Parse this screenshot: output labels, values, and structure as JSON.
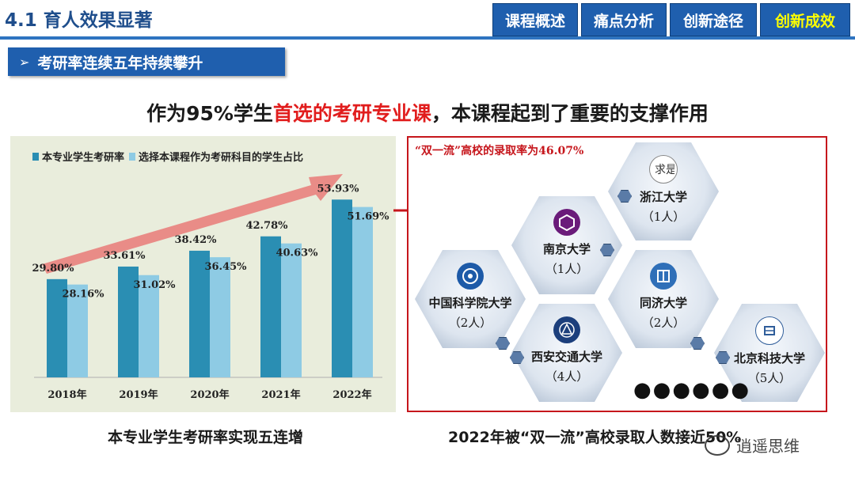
{
  "header": {
    "title": "4.1 育人效果显著",
    "nav": [
      "课程概述",
      "痛点分析",
      "创新途径",
      "创新成效"
    ],
    "active_nav": "创新成效"
  },
  "subtitle": "考研率连续五年持续攀升",
  "headline": {
    "part1": "作为95%学生",
    "highlight": "首选的考研专业课",
    "part2": "，本课程起到了重要的支撑作用"
  },
  "left_caption": "本专业学生考研率实现五连增",
  "right_caption": "2022年被“双一流”高校录取人数接近50%",
  "rate_label": "“双一流”高校的录取率为46.07%",
  "chart_data": {
    "type": "bar",
    "categories": [
      "2018年",
      "2019年",
      "2020年",
      "2021年",
      "2022年"
    ],
    "series": [
      {
        "name": "本专业学生考研率",
        "values": [
          29.8,
          33.61,
          38.42,
          42.78,
          53.93
        ],
        "labels": [
          "29.80%",
          "33.61%",
          "38.42%",
          "42.78%",
          "53.93%"
        ],
        "color": "#2a8eb3"
      },
      {
        "name": "选择本课程作为考研科目的学生占比",
        "values": [
          28.16,
          31.02,
          36.45,
          40.63,
          51.69
        ],
        "labels": [
          "28.16%",
          "31.02%",
          "36.45%",
          "40.63%",
          "51.69%"
        ],
        "color": "#8ecbe4"
      }
    ],
    "ylim": [
      0,
      60
    ],
    "annotation": "upward trend arrow"
  },
  "universities": [
    {
      "name": "浙江大学",
      "count": "（1人）"
    },
    {
      "name": "南京大学",
      "count": "（1人）"
    },
    {
      "name": "中国科学院大学",
      "count": "（2人）"
    },
    {
      "name": "同济大学",
      "count": "（2人）"
    },
    {
      "name": "西安交通大学",
      "count": "（4人）"
    },
    {
      "name": "北京科技大学",
      "count": "（5人）"
    }
  ],
  "more": "●●●●●●",
  "watermark": "逍遥思维",
  "colors": {
    "primary": "#1f5fae",
    "accent_red": "#e11d1d",
    "panel_bg": "#e9eddc"
  }
}
